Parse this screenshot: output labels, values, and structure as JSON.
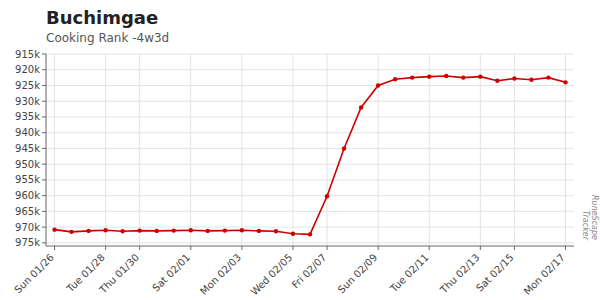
{
  "chart_data": {
    "type": "line",
    "title": "Buchimgae",
    "subtitle": "Cooking Rank -4w3d",
    "categories": [
      "Sun 01/26",
      null,
      null,
      "Tue 01/28",
      null,
      "Thu 01/30",
      null,
      null,
      "Sat 02/01",
      null,
      null,
      "Mon 02/03",
      null,
      null,
      "Wed 02/05",
      null,
      "Fri 02/07",
      null,
      null,
      "Sun 02/09",
      null,
      null,
      "Tue 02/11",
      null,
      null,
      "Thu 02/13",
      null,
      "Sat 02/15",
      null,
      null,
      "Mon 02/17"
    ],
    "values": [
      970800,
      971500,
      971200,
      971000,
      971300,
      971100,
      971200,
      971100,
      971000,
      971200,
      971100,
      971000,
      971200,
      971300,
      972100,
      972300,
      960200,
      945000,
      932000,
      925000,
      923000,
      922500,
      922200,
      922000,
      922500,
      922200,
      923500,
      922800,
      923200,
      922500,
      924000
    ],
    "color": "#cc0000",
    "marker": "circle",
    "ylim": [
      976000,
      915000
    ],
    "yticks": [
      {
        "value": 915000,
        "label": "915k"
      },
      {
        "value": 920000,
        "label": "920k"
      },
      {
        "value": 925000,
        "label": "925k"
      },
      {
        "value": 930000,
        "label": "930k"
      },
      {
        "value": 935000,
        "label": "935k"
      },
      {
        "value": 940000,
        "label": "940k"
      },
      {
        "value": 945000,
        "label": "945k"
      },
      {
        "value": 950000,
        "label": "950k"
      },
      {
        "value": 955000,
        "label": "955k"
      },
      {
        "value": 960000,
        "label": "960k"
      },
      {
        "value": 965000,
        "label": "965k"
      },
      {
        "value": 970000,
        "label": "970k"
      },
      {
        "value": 975000,
        "label": "975k"
      }
    ],
    "grid": true,
    "annotations": [
      "RuneScape\nTracker"
    ]
  }
}
